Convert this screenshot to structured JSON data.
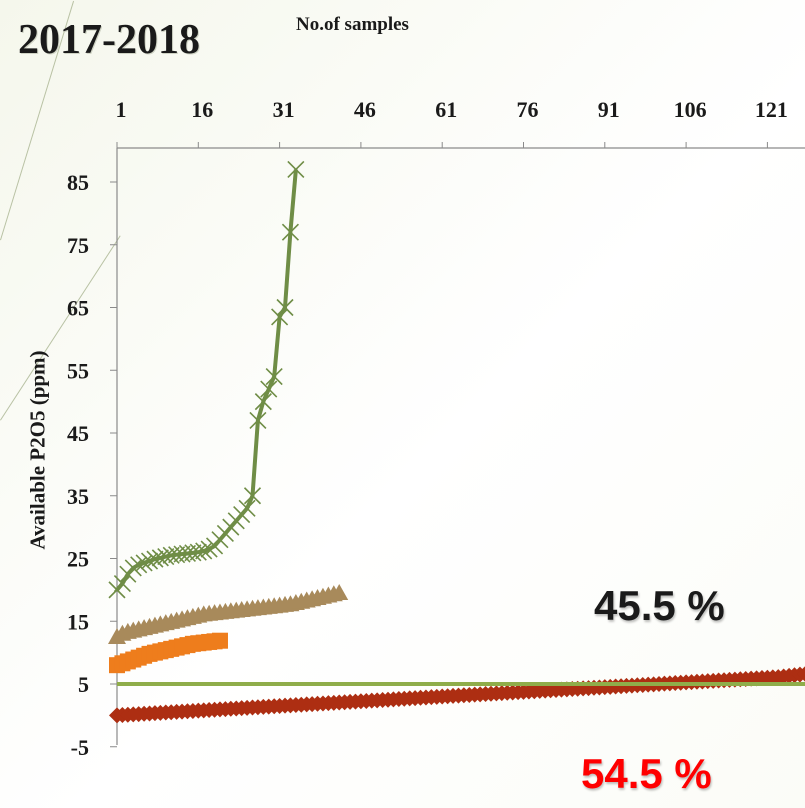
{
  "header": {
    "title": "2017-2018",
    "x_axis_title": "No.of samples",
    "y_axis_title": "Available P2O5 (ppm)"
  },
  "annotations": {
    "above_percent": "45.5 %",
    "below_percent": "54.5 %"
  },
  "colors": {
    "green_series": "#6f8d46",
    "tan_series": "#a88a5b",
    "orange_series": "#ee7d1c",
    "red_series": "#ad2e12",
    "threshold_line": "#8fad4a",
    "below_text": "#ff0000"
  },
  "chart_data": {
    "type": "line",
    "title": "2017-2018",
    "xlabel": "No.of samples",
    "ylabel": "Available P2O5 (ppm)",
    "x_ticks": [
      "1",
      "16",
      "31",
      "46",
      "61",
      "76",
      "91",
      "106",
      "121"
    ],
    "y_ticks": [
      "-5",
      "5",
      "15",
      "25",
      "35",
      "45",
      "55",
      "65",
      "75",
      "85"
    ],
    "xlim": [
      1,
      136
    ],
    "ylim": [
      -5,
      90
    ],
    "x_axis_position": "top",
    "grid": false,
    "series": [
      {
        "marker": "x",
        "color": "#6f8d46",
        "x": [
          1,
          2,
          3,
          4,
          5,
          6,
          7,
          8,
          9,
          10,
          11,
          12,
          13,
          14,
          15,
          16,
          17,
          18,
          19,
          20,
          21,
          22,
          23,
          24,
          25,
          26,
          27,
          28,
          29,
          30,
          31,
          32,
          33,
          34
        ],
        "values": [
          20,
          21,
          22.5,
          23.5,
          24,
          24.3,
          24.6,
          24.9,
          25.1,
          25.3,
          25.5,
          25.6,
          25.7,
          25.8,
          25.9,
          26,
          26.2,
          26.5,
          27,
          28,
          29,
          30,
          31,
          32,
          33,
          35,
          47,
          50,
          52,
          54,
          63.5,
          65,
          77,
          87
        ]
      },
      {
        "marker": "triangle",
        "color": "#a88a5b",
        "x": [
          1,
          2,
          3,
          4,
          5,
          6,
          7,
          8,
          9,
          10,
          11,
          12,
          13,
          14,
          15,
          16,
          17,
          18,
          19,
          20,
          21,
          22,
          23,
          24,
          25,
          26,
          27,
          28,
          29,
          30,
          31,
          32,
          33,
          34,
          35,
          36,
          37,
          38,
          39,
          40,
          41,
          42
        ],
        "values": [
          12.5,
          13,
          13.3,
          13.5,
          13.7,
          13.9,
          14.1,
          14.3,
          14.5,
          14.7,
          14.9,
          15.1,
          15.3,
          15.5,
          15.7,
          15.9,
          16.1,
          16.2,
          16.3,
          16.4,
          16.5,
          16.6,
          16.7,
          16.8,
          16.9,
          17.0,
          17.1,
          17.2,
          17.3,
          17.4,
          17.5,
          17.6,
          17.7,
          17.9,
          18.1,
          18.3,
          18.5,
          18.7,
          18.9,
          19.1,
          19.3,
          19.5
        ]
      },
      {
        "marker": "square",
        "color": "#ee7d1c",
        "x": [
          1,
          2,
          3,
          4,
          5,
          6,
          7,
          8,
          9,
          10,
          11,
          12,
          13,
          14,
          15,
          16,
          17,
          18,
          19,
          20
        ],
        "values": [
          8,
          8.3,
          8.6,
          8.9,
          9.2,
          9.5,
          9.8,
          10,
          10.2,
          10.4,
          10.6,
          10.8,
          11,
          11.2,
          11.4,
          11.5,
          11.6,
          11.7,
          11.8,
          11.9
        ]
      },
      {
        "marker": "diamond",
        "color": "#ad2e12",
        "x_start": 1,
        "x_end": 136,
        "values": [
          0,
          0.05,
          0.1,
          0.15,
          0.2,
          0.25,
          0.3,
          0.35,
          0.4,
          0.45,
          0.5,
          0.55,
          0.6,
          0.65,
          0.7,
          0.75,
          0.8,
          0.85,
          0.9,
          0.95,
          1.0,
          1.05,
          1.1,
          1.15,
          1.2,
          1.25,
          1.3,
          1.35,
          1.4,
          1.45,
          1.5,
          1.55,
          1.6,
          1.65,
          1.7,
          1.75,
          1.8,
          1.85,
          1.9,
          1.95,
          2.0,
          2.05,
          2.1,
          2.15,
          2.2,
          2.25,
          2.3,
          2.35,
          2.4,
          2.45,
          2.5,
          2.55,
          2.6,
          2.65,
          2.7,
          2.75,
          2.8,
          2.85,
          2.9,
          2.95,
          3.0,
          3.05,
          3.1,
          3.15,
          3.2,
          3.25,
          3.3,
          3.35,
          3.4,
          3.45,
          3.5,
          3.55,
          3.6,
          3.65,
          3.7,
          3.75,
          3.8,
          3.85,
          3.9,
          3.95,
          4.0,
          4.05,
          4.1,
          4.15,
          4.2,
          4.25,
          4.3,
          4.35,
          4.4,
          4.45,
          4.5,
          4.55,
          4.6,
          4.65,
          4.7,
          4.75,
          4.8,
          4.85,
          4.9,
          4.95,
          5.0,
          5.05,
          5.1,
          5.15,
          5.2,
          5.25,
          5.3,
          5.35,
          5.4,
          5.45,
          5.5,
          5.55,
          5.6,
          5.65,
          5.7,
          5.75,
          5.8,
          5.85,
          5.9,
          5.95,
          6.0,
          6.05,
          6.1,
          6.2,
          6.3,
          6.4,
          6.5,
          6.6,
          6.7,
          6.8,
          7.0,
          7.2,
          7.4,
          7.6,
          7.8,
          8.0
        ]
      },
      {
        "marker": "none",
        "color": "#8fad4a",
        "x": [
          1,
          136
        ],
        "values": [
          5,
          5
        ]
      }
    ]
  }
}
